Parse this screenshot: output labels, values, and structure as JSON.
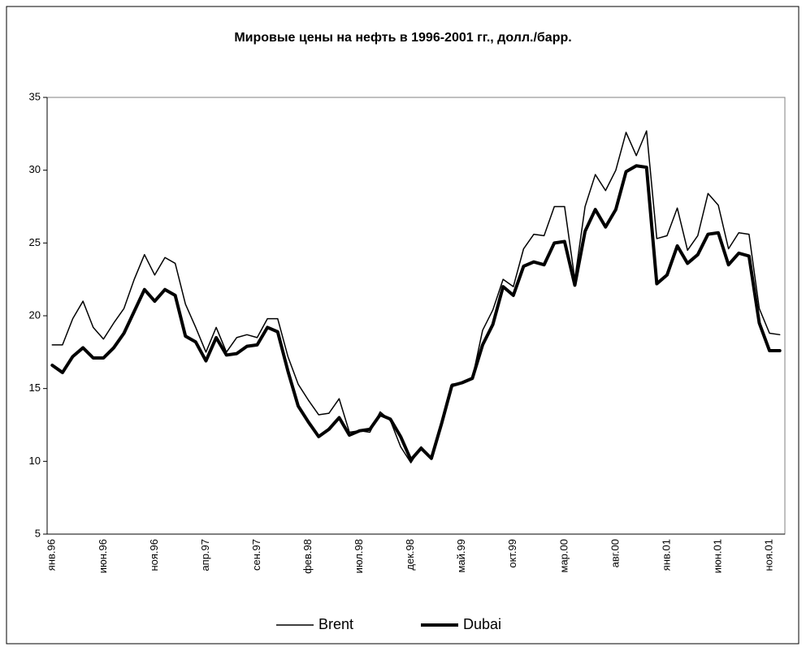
{
  "chart_data": {
    "type": "line",
    "title": "Мировые цены на нефть  в 1996-2001 гг., долл./барр.",
    "categories": [
      "янв.96",
      null,
      null,
      null,
      null,
      "июн.96",
      null,
      null,
      null,
      null,
      "ноя.96",
      null,
      null,
      null,
      null,
      "апр.97",
      null,
      null,
      null,
      null,
      "сен.97",
      null,
      null,
      null,
      null,
      "фев.98",
      null,
      null,
      null,
      null,
      "июл.98",
      null,
      null,
      null,
      null,
      "дек.98",
      null,
      null,
      null,
      null,
      "май.99",
      null,
      null,
      null,
      null,
      "окт.99",
      null,
      null,
      null,
      null,
      "мар.00",
      null,
      null,
      null,
      null,
      "авг.00",
      null,
      null,
      null,
      null,
      "янв.01",
      null,
      null,
      null,
      null,
      "июн.01",
      null,
      null,
      null,
      null,
      "ноя.01",
      null
    ],
    "series": [
      {
        "name": "Brent",
        "color": "#000000",
        "width": 1.5,
        "values": [
          18.0,
          18.0,
          19.8,
          21.0,
          19.2,
          18.4,
          19.5,
          20.5,
          22.5,
          24.2,
          22.8,
          24.0,
          23.6,
          20.8,
          19.2,
          17.5,
          19.2,
          17.5,
          18.5,
          18.7,
          18.5,
          19.8,
          19.8,
          17.2,
          15.3,
          14.2,
          13.2,
          13.3,
          14.3,
          12.0,
          12.1,
          12.0,
          13.4,
          12.8,
          11.0,
          9.9,
          11.0,
          10.2,
          12.6,
          15.3,
          15.4,
          15.7,
          19.0,
          20.4,
          22.5,
          22.0,
          24.6,
          25.6,
          25.5,
          27.5,
          27.5,
          22.5,
          27.5,
          29.7,
          28.6,
          30.0,
          32.6,
          31.0,
          32.7,
          25.3,
          25.5,
          27.4,
          24.5,
          25.5,
          28.4,
          27.6,
          24.6,
          25.7,
          25.6,
          20.5,
          18.8,
          18.7
        ]
      },
      {
        "name": "Dubai",
        "color": "#000000",
        "width": 4,
        "values": [
          16.6,
          16.1,
          17.2,
          17.8,
          17.1,
          17.1,
          17.8,
          18.8,
          20.3,
          21.8,
          21.0,
          21.8,
          21.4,
          18.6,
          18.2,
          16.9,
          18.5,
          17.3,
          17.4,
          17.9,
          18.0,
          19.2,
          18.9,
          16.2,
          13.8,
          12.7,
          11.7,
          12.2,
          13.0,
          11.8,
          12.1,
          12.2,
          13.2,
          12.9,
          11.7,
          10.1,
          10.9,
          10.2,
          12.6,
          15.2,
          15.4,
          15.7,
          18.0,
          19.4,
          22.0,
          21.4,
          23.4,
          23.7,
          23.5,
          25.0,
          25.1,
          22.1,
          25.8,
          27.3,
          26.1,
          27.3,
          29.9,
          30.3,
          30.2,
          22.2,
          22.8,
          24.8,
          23.6,
          24.2,
          25.6,
          25.7,
          23.5,
          24.3,
          24.1,
          19.5,
          17.6,
          17.6
        ]
      }
    ],
    "ylim": [
      5,
      35
    ],
    "yticks": [
      5,
      10,
      15,
      20,
      25,
      30,
      35
    ],
    "grid": false,
    "legend": "bottom"
  }
}
